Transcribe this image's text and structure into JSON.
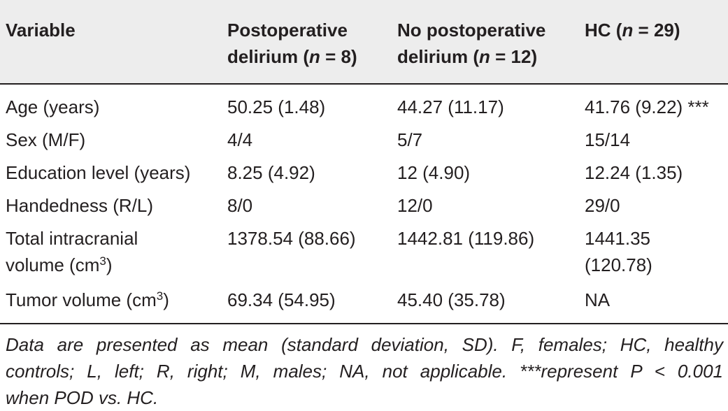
{
  "header": {
    "col1": "Variable",
    "col2_line1": "Postoperative",
    "col2_line2_pre": "delirium (",
    "col2_line2_n": "n",
    "col2_line2_post": " = 8)",
    "col3_line1": "No postoperative",
    "col3_line2_pre": "delirium (",
    "col3_line2_n": "n",
    "col3_line2_post": " = 12)",
    "col4_pre": "HC (",
    "col4_n": "n",
    "col4_post": " = 29)"
  },
  "rows": {
    "age": {
      "label": "Age (years)",
      "pod": "50.25 (1.48)",
      "nopod": "44.27 (11.17)",
      "hc": "41.76 (9.22) ***"
    },
    "sex": {
      "label": "Sex (M/F)",
      "pod": "4/4",
      "nopod": "5/7",
      "hc": "15/14"
    },
    "education": {
      "label": "Education level (years)",
      "pod": "8.25 (4.92)",
      "nopod": "12 (4.90)",
      "hc": "12.24 (1.35)"
    },
    "handedness": {
      "label": "Handedness (R/L)",
      "pod": "8/0",
      "nopod": "12/0",
      "hc": "29/0"
    },
    "tiv": {
      "label_line1": "Total intracranial",
      "label_line2": "volume (cm",
      "label_sup": "3",
      "label_close": ")",
      "pod": "1378.54 (88.66)",
      "nopod": "1442.81 (119.86)",
      "hc_line1": "1441.35",
      "hc_line2": "(120.78)"
    },
    "tumor": {
      "label": "Tumor volume (cm",
      "label_sup": "3",
      "label_close": ")",
      "pod": "69.34 (54.95)",
      "nopod": "45.40 (35.78)",
      "hc": "NA"
    }
  },
  "footnote": {
    "line1": "Data are presented as mean (standard deviation, SD). F, females; HC, healthy",
    "line2": "controls; L, left; R, right; M, males; NA, not applicable. ***represent P < 0.001",
    "line3": "when POD vs. HC."
  }
}
